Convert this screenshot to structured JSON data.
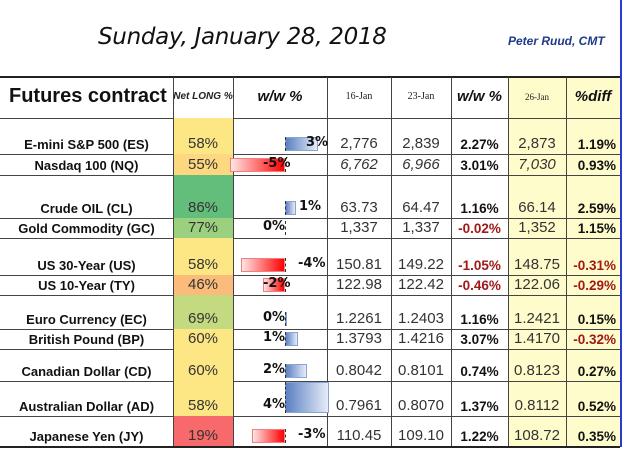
{
  "title": "Sunday, January 28, 2018",
  "author": "Peter Ruud, CMT",
  "headers": {
    "contract": "Futures contract",
    "net_long": "Net LONG %",
    "ww1": "w/w %",
    "d1": "16-Jan",
    "d2": "23-Jan",
    "ww2": "w/w %",
    "d3": "26-Jan",
    "diff": "%diff"
  },
  "colors": {
    "positive_bar": "#5b80c3",
    "negative_bar": "#ff0000",
    "negative_text": "#a01818",
    "highlight_col": "#fffccc",
    "border_blue": "#2a3ad0"
  },
  "rows": [
    {
      "name": "E-mini S&P 500 (ES)",
      "net_long": "58%",
      "net_long_color": "#fde785",
      "ww_cot": "3%",
      "ww_cot_value": 3,
      "p16": "2,776",
      "p23": "2,839",
      "ww_price": "2.27%",
      "p26": "2,873",
      "diff": "1.19%",
      "italic": false
    },
    {
      "name": "Nasdaq 100 (NQ)",
      "net_long": "55%",
      "net_long_color": "#fdd880",
      "ww_cot": "-5%",
      "ww_cot_value": -5,
      "p16": "6,762",
      "p23": "6,966",
      "ww_price": "3.01%",
      "p26": "7,030",
      "diff": "0.93%",
      "italic": true
    },
    {
      "name": "Crude OIL (CL)",
      "net_long": "86%",
      "net_long_color": "#63be7b",
      "ww_cot": "1%",
      "ww_cot_value": 1,
      "p16": "63.73",
      "p23": "64.47",
      "ww_price": "1.16%",
      "p26": "66.14",
      "diff": "2.59%",
      "italic": false
    },
    {
      "name": "Gold Commodity (GC)",
      "net_long": "77%",
      "net_long_color": "#9bd07e",
      "ww_cot": "0%",
      "ww_cot_value": 0,
      "p16": "1,337",
      "p23": "1,337",
      "ww_price": "-0.02%",
      "p26": "1,352",
      "diff": "1.15%",
      "italic": false
    },
    {
      "name": "US 30-Year (US)",
      "net_long": "58%",
      "net_long_color": "#fde785",
      "ww_cot": "-4%",
      "ww_cot_value": -4,
      "p16": "150.81",
      "p23": "149.22",
      "ww_price": "-1.05%",
      "p26": "148.75",
      "diff": "-0.31%",
      "italic": false
    },
    {
      "name": "US 10-Year (TY)",
      "net_long": "46%",
      "net_long_color": "#fbbc7b",
      "ww_cot": "-2%",
      "ww_cot_value": -2,
      "p16": "122.98",
      "p23": "122.42",
      "ww_price": "-0.46%",
      "p26": "122.06",
      "diff": "-0.29%",
      "italic": false
    },
    {
      "name": "Euro Currency (EC)",
      "net_long": "69%",
      "net_long_color": "#c3da81",
      "ww_cot": "0%",
      "ww_cot_value": 0.2,
      "p16": "1.2261",
      "p23": "1.2403",
      "ww_price": "1.16%",
      "p26": "1.2421",
      "diff": "0.15%",
      "italic": false
    },
    {
      "name": "British Pound (BP)",
      "net_long": "60%",
      "net_long_color": "#fde785",
      "ww_cot": "1%",
      "ww_cot_value": 1.2,
      "p16": "1.3793",
      "p23": "1.4216",
      "ww_price": "3.07%",
      "p26": "1.4170",
      "diff": "-0.32%",
      "italic": false
    },
    {
      "name": "Canadian Dollar (CD)",
      "net_long": "60%",
      "net_long_color": "#fde785",
      "ww_cot": "2%",
      "ww_cot_value": 2,
      "p16": "0.8042",
      "p23": "0.8101",
      "ww_price": "0.74%",
      "p26": "0.8123",
      "diff": "0.27%",
      "italic": false
    },
    {
      "name": "Australian Dollar (AD)",
      "net_long": "58%",
      "net_long_color": "#fde785",
      "ww_cot": "4%",
      "ww_cot_value": 4,
      "p16": "0.7961",
      "p23": "0.8070",
      "ww_price": "1.37%",
      "p26": "0.8112",
      "diff": "0.52%",
      "italic": false
    },
    {
      "name": "Japanese Yen (JY)",
      "net_long": "19%",
      "net_long_color": "#f8696b",
      "ww_cot": "-3%",
      "ww_cot_value": -3,
      "p16": "110.45",
      "p23": "109.10",
      "ww_price": "1.22%",
      "p26": "108.72",
      "diff": "0.35%",
      "italic": false
    }
  ]
}
